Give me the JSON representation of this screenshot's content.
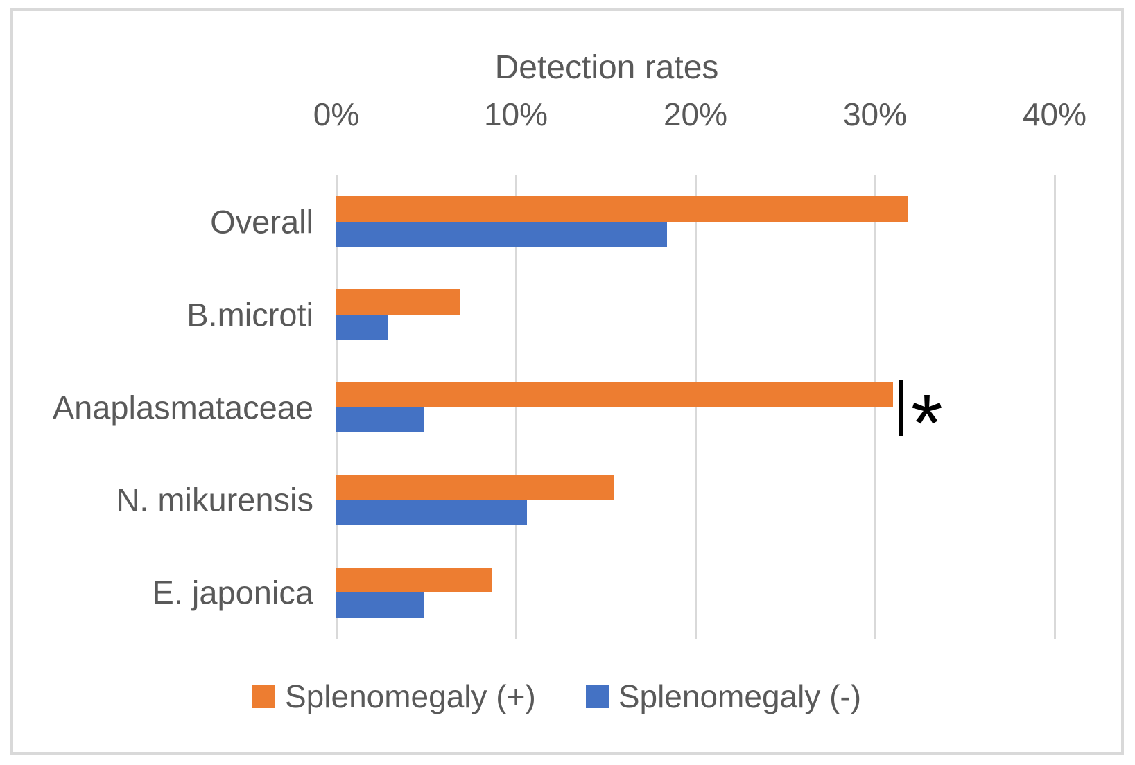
{
  "figure": {
    "background": "#ffffff",
    "border_color": "#d9d9d9",
    "gridline_color": "#d9d9d9",
    "text_color": "#595959",
    "annotation_color": "#000000"
  },
  "chart_data": {
    "type": "bar",
    "orientation": "horizontal",
    "title": "Detection rates",
    "categories": [
      "Overall",
      "B.microti",
      "Anaplasmataceae",
      "N. mikurensis",
      "E. japonica"
    ],
    "series": [
      {
        "name": "Splenomegaly (+)",
        "color": "#ED7D31",
        "values": [
          31.8,
          6.9,
          31.0,
          15.5,
          8.7
        ]
      },
      {
        "name": "Splenomegaly (-)",
        "color": "#4472C4",
        "values": [
          18.4,
          2.9,
          4.9,
          10.6,
          4.9
        ]
      }
    ],
    "x_axis": {
      "range": [
        0,
        40
      ],
      "ticks": [
        {
          "value": 0,
          "label": "0%"
        },
        {
          "value": 10,
          "label": "10%"
        },
        {
          "value": 20,
          "label": "20%"
        },
        {
          "value": 30,
          "label": "30%"
        },
        {
          "value": 40,
          "label": "40%"
        }
      ]
    },
    "grid": true,
    "legend": {
      "position": "bottom"
    },
    "annotation": {
      "category": "Anaplasmataceae",
      "series": "Splenomegaly (+)",
      "symbol": "*"
    }
  }
}
